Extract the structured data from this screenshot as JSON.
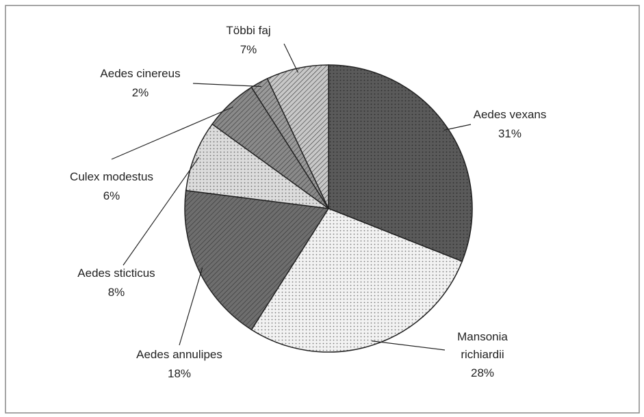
{
  "chart_data": {
    "type": "pie",
    "categories": [
      "Aedes vexans",
      "Mansonia richiardii",
      "Aedes annulipes",
      "Aedes sticticus",
      "Culex modestus",
      "Aedes cinereus",
      "Többi faj"
    ],
    "values": [
      31,
      28,
      18,
      8,
      6,
      2,
      7
    ],
    "value_labels": [
      "31%",
      "28%",
      "18%",
      "8%",
      "6%",
      "2%",
      "7%"
    ],
    "colors": [
      "#5a5a5a",
      "#f2f2f2",
      "#6e6e6e",
      "#dcdcdc",
      "#8a8a8a",
      "#9a9a9a",
      "#c8c8c8"
    ]
  }
}
